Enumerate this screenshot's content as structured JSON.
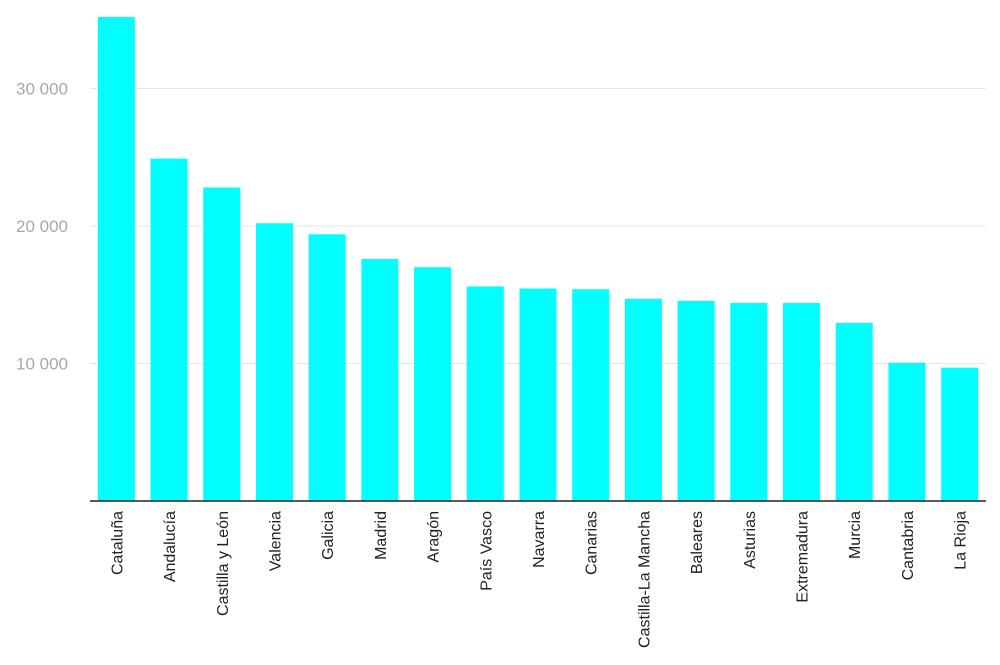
{
  "chart_data": {
    "type": "bar",
    "categories": [
      "Cataluña",
      "Andalucía",
      "Castilla y León",
      "Valencia",
      "Galicia",
      "Madrid",
      "Aragón",
      "País Vasco",
      "Navarra",
      "Canarias",
      "Castilla-La Mancha",
      "Baleares",
      "Asturias",
      "Extremadura",
      "Murcia",
      "Cantabria",
      "La Rioja"
    ],
    "values": [
      35200,
      24900,
      22800,
      20200,
      19400,
      17600,
      17000,
      15600,
      15450,
      15400,
      14700,
      14550,
      14400,
      14400,
      12950,
      10050,
      9700
    ],
    "yticks": [
      10000,
      20000,
      30000
    ],
    "ytick_labels": [
      "10 000",
      "20 000",
      "30 000"
    ],
    "ylim": [
      0,
      36500
    ],
    "title": "",
    "xlabel": "",
    "ylabel": "",
    "grid": true,
    "bar_color": "#00ffff"
  }
}
